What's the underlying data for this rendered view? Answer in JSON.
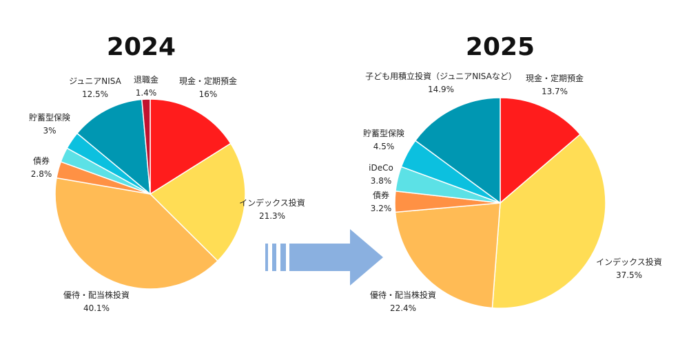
{
  "chart_data": [
    {
      "type": "pie",
      "title": "2024",
      "slices": [
        {
          "label": "現金・定期預金",
          "value": 16,
          "value_text": "16%",
          "color": "#ff1c1c"
        },
        {
          "label": "インデックス投資",
          "value": 21.3,
          "value_text": "21.3%",
          "color": "#ffdd55"
        },
        {
          "label": "優待・配当株投資",
          "value": 40.1,
          "value_text": "40.1%",
          "color": "#ffbb55"
        },
        {
          "label": "債券",
          "value": 2.8,
          "value_text": "2.8%",
          "color": "#ff9144"
        },
        {
          "label": "",
          "value": 2.5,
          "value_text": "",
          "color": "#5ce1e6"
        },
        {
          "label": "貯蓄型保険",
          "value": 3,
          "value_text": "3%",
          "color": "#0cc0df"
        },
        {
          "label": "ジュニアNISA",
          "value": 12.5,
          "value_text": "12.5%",
          "color": "#0097b2"
        },
        {
          "label": "退職金",
          "value": 1.4,
          "value_text": "1.4%",
          "color": "#c1122f"
        }
      ]
    },
    {
      "type": "pie",
      "title": "2025",
      "slices": [
        {
          "label": "現金・定期預金",
          "value": 13.7,
          "value_text": "13.7%",
          "color": "#ff1c1c"
        },
        {
          "label": "インデックス投資",
          "value": 37.5,
          "value_text": "37.5%",
          "color": "#ffdd55"
        },
        {
          "label": "優待・配当株投資",
          "value": 22.4,
          "value_text": "22.4%",
          "color": "#ffbb55"
        },
        {
          "label": "債券",
          "value": 3.2,
          "value_text": "3.2%",
          "color": "#ff9144"
        },
        {
          "label": "iDeCo",
          "value": 3.8,
          "value_text": "3.8%",
          "color": "#5ce1e6"
        },
        {
          "label": "貯蓄型保険",
          "value": 4.5,
          "value_text": "4.5%",
          "color": "#0cc0df"
        },
        {
          "label": "子ども用積立投資（ジュニアNISAなど）",
          "value": 14.9,
          "value_text": "14.9%",
          "color": "#0097b2"
        }
      ]
    }
  ],
  "arrow": {
    "color": "#8ab0e0"
  }
}
